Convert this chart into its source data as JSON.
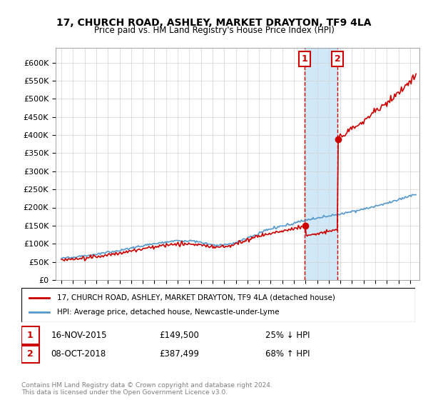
{
  "title": "17, CHURCH ROAD, ASHLEY, MARKET DRAYTON, TF9 4LA",
  "subtitle": "Price paid vs. HM Land Registry's House Price Index (HPI)",
  "red_label": "17, CHURCH ROAD, ASHLEY, MARKET DRAYTON, TF9 4LA (detached house)",
  "blue_label": "HPI: Average price, detached house, Newcastle-under-Lyme",
  "footnote": "Contains HM Land Registry data © Crown copyright and database right 2024.\nThis data is licensed under the Open Government Licence v3.0.",
  "transaction1_date": "16-NOV-2015",
  "transaction1_price": 149500,
  "transaction1_label": "25% ↓ HPI",
  "transaction2_date": "08-OCT-2018",
  "transaction2_price": 387499,
  "transaction2_label": "68% ↑ HPI",
  "ylim": [
    0,
    620000
  ],
  "yticks": [
    0,
    50000,
    100000,
    150000,
    200000,
    250000,
    300000,
    350000,
    400000,
    450000,
    500000,
    550000,
    600000
  ],
  "box1_color": "#cc0000",
  "box2_color": "#cc0000",
  "shade_color": "#d0e8f8",
  "red_color": "#cc0000",
  "blue_color": "#5599cc",
  "marker1_color": "#cc0000",
  "marker2_color": "#cc0000"
}
